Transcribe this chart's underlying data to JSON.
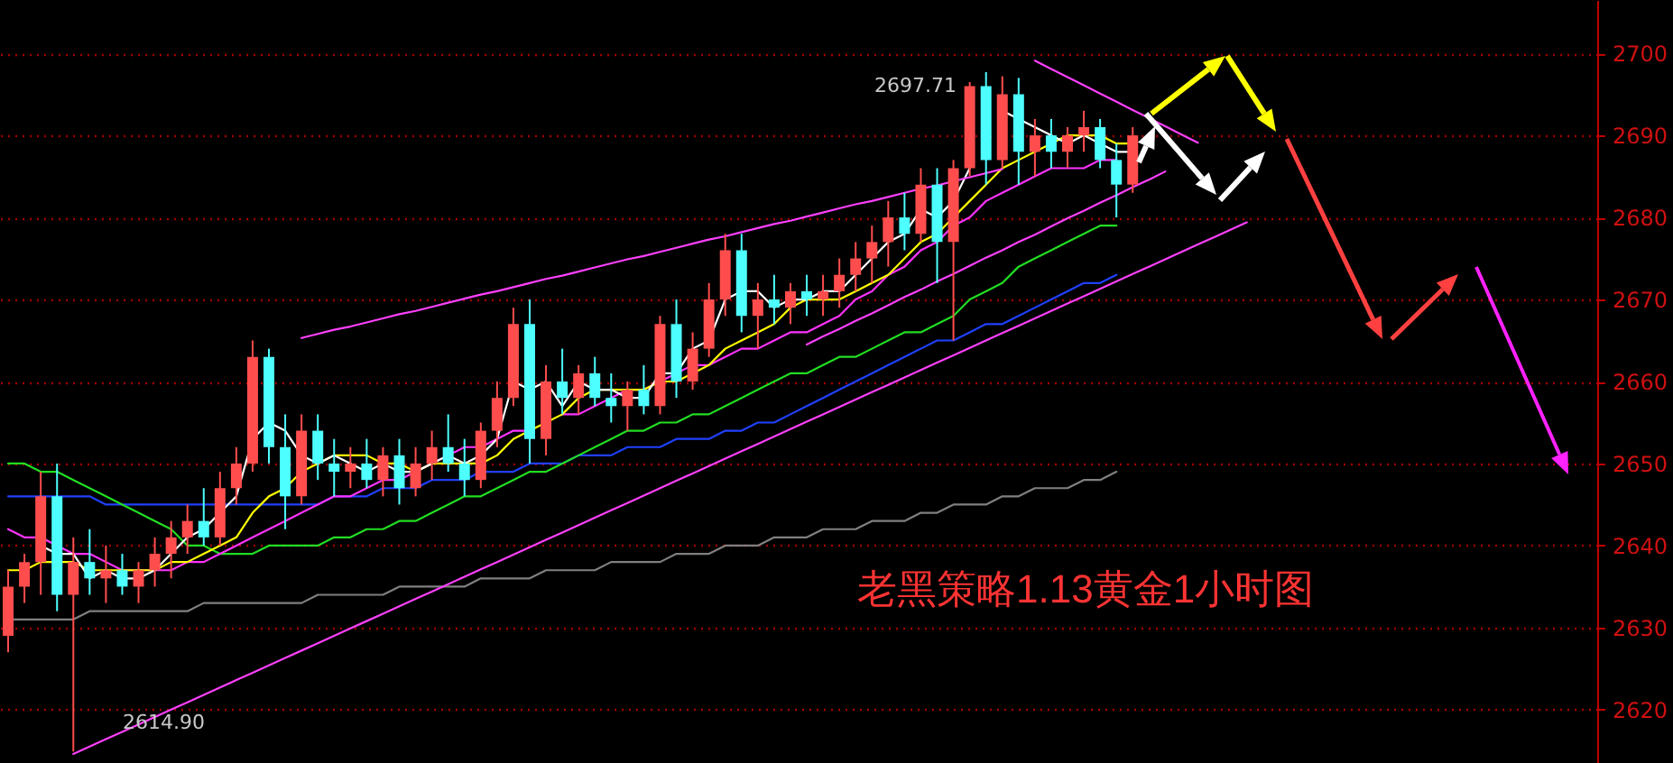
{
  "chart_data": {
    "type": "candlestick",
    "categories": [
      null,
      null,
      null,
      null,
      null,
      null,
      null,
      null,
      null,
      null,
      null,
      null,
      null,
      null,
      null,
      null,
      null,
      null,
      null,
      null,
      null,
      null,
      null,
      null,
      null,
      null,
      null,
      null,
      null,
      null,
      null,
      null,
      null,
      null,
      null,
      null,
      null,
      null,
      null,
      null,
      null,
      null,
      null,
      null,
      null,
      null,
      null,
      null,
      null,
      null,
      null,
      null,
      null,
      null,
      null,
      null,
      null,
      null,
      null,
      null,
      null,
      null,
      null,
      null,
      null,
      null,
      null,
      null,
      null,
      null,
      null,
      null,
      null,
      null,
      null,
      null,
      null,
      null,
      null,
      null,
      null,
      null,
      null,
      null,
      null,
      null,
      null,
      null,
      null,
      null,
      null,
      null,
      null,
      null,
      null,
      null,
      null,
      null
    ],
    "ohlc": [
      [
        2629,
        2637,
        2627,
        2635
      ],
      [
        2635,
        2639,
        2633,
        2638
      ],
      [
        2638,
        2649,
        2634,
        2646
      ],
      [
        2646,
        2650,
        2632,
        2634
      ],
      [
        2634,
        2641,
        2614.9,
        2638
      ],
      [
        2638,
        2642,
        2634,
        2636
      ],
      [
        2636,
        2640,
        2633,
        2637
      ],
      [
        2637,
        2639,
        2634,
        2635
      ],
      [
        2635,
        2638,
        2633,
        2637
      ],
      [
        2637,
        2641,
        2635,
        2639
      ],
      [
        2639,
        2643,
        2636,
        2641
      ],
      [
        2641,
        2645,
        2639,
        2643
      ],
      [
        2643,
        2647,
        2640,
        2641
      ],
      [
        2641,
        2649,
        2640,
        2647
      ],
      [
        2647,
        2652,
        2645,
        2650
      ],
      [
        2650,
        2665,
        2649,
        2663
      ],
      [
        2663,
        2664,
        2650,
        2652
      ],
      [
        2652,
        2656,
        2642,
        2646
      ],
      [
        2646,
        2656,
        2645,
        2654
      ],
      [
        2654,
        2656,
        2648,
        2650
      ],
      [
        2650,
        2653,
        2646,
        2649
      ],
      [
        2649,
        2652,
        2647,
        2650
      ],
      [
        2650,
        2653,
        2647,
        2648
      ],
      [
        2648,
        2652,
        2646,
        2651
      ],
      [
        2651,
        2653,
        2645,
        2647
      ],
      [
        2647,
        2652,
        2646,
        2650
      ],
      [
        2650,
        2654,
        2648,
        2652
      ],
      [
        2652,
        2656,
        2649,
        2650
      ],
      [
        2650,
        2653,
        2646,
        2648
      ],
      [
        2648,
        2655,
        2647,
        2654
      ],
      [
        2654,
        2660,
        2652,
        2658
      ],
      [
        2658,
        2669,
        2657,
        2667
      ],
      [
        2667,
        2670,
        2650,
        2653
      ],
      [
        2653,
        2662,
        2651,
        2660
      ],
      [
        2660,
        2664,
        2656,
        2658
      ],
      [
        2658,
        2662,
        2656,
        2661
      ],
      [
        2661,
        2663,
        2657,
        2658
      ],
      [
        2658,
        2661,
        2655,
        2657
      ],
      [
        2657,
        2660,
        2654,
        2659
      ],
      [
        2659,
        2662,
        2656,
        2657
      ],
      [
        2657,
        2668,
        2656,
        2667
      ],
      [
        2667,
        2670,
        2658,
        2660
      ],
      [
        2660,
        2666,
        2659,
        2664
      ],
      [
        2664,
        2672,
        2663,
        2670
      ],
      [
        2670,
        2678,
        2668,
        2676
      ],
      [
        2676,
        2678,
        2666,
        2668
      ],
      [
        2668,
        2672,
        2664,
        2670
      ],
      [
        2670,
        2673,
        2667,
        2669
      ],
      [
        2669,
        2672,
        2667,
        2671
      ],
      [
        2671,
        2673,
        2668,
        2670
      ],
      [
        2670,
        2673,
        2668,
        2671
      ],
      [
        2671,
        2675,
        2669,
        2673
      ],
      [
        2673,
        2677,
        2671,
        2675
      ],
      [
        2675,
        2679,
        2672,
        2677
      ],
      [
        2677,
        2682,
        2674,
        2680
      ],
      [
        2680,
        2683,
        2676,
        2678
      ],
      [
        2678,
        2686,
        2677,
        2684
      ],
      [
        2684,
        2686,
        2672,
        2677
      ],
      [
        2677,
        2687,
        2665,
        2686
      ],
      [
        2686,
        2696.5,
        2685,
        2696
      ],
      [
        2696,
        2697.71,
        2684,
        2687
      ],
      [
        2687,
        2697.2,
        2686,
        2695
      ],
      [
        2695,
        2697,
        2684,
        2688
      ],
      [
        2688,
        2692,
        2685,
        2690
      ],
      [
        2690,
        2692,
        2686,
        2688
      ],
      [
        2688,
        2691,
        2686,
        2690
      ],
      [
        2690,
        2693,
        2688,
        2691
      ],
      [
        2691,
        2692,
        2686,
        2687
      ],
      [
        2687,
        2689,
        2680,
        2684
      ],
      [
        2684,
        2691,
        2683,
        2690
      ],
      null,
      null,
      null,
      null,
      null,
      null,
      null,
      null,
      null,
      null,
      null,
      null,
      null,
      null,
      null,
      null,
      null,
      null,
      null,
      null,
      null,
      null,
      null,
      null,
      null,
      null,
      null,
      null
    ],
    "colors": [
      "#ff4d4d",
      "#ff4d4d",
      "#ff4d4d",
      "#4dffff",
      "#ff4d4d",
      "#4dffff",
      "#ff4d4d",
      "#4dffff",
      "#ff4d4d",
      "#ff4d4d",
      "#ff4d4d",
      "#ff4d4d",
      "#4dffff",
      "#ff4d4d",
      "#ff4d4d",
      "#ff4d4d",
      "#4dffff",
      "#4dffff",
      "#ff4d4d",
      "#4dffff",
      "#4dffff",
      "#ff4d4d",
      "#4dffff",
      "#ff4d4d",
      "#4dffff",
      "#ff4d4d",
      "#ff4d4d",
      "#4dffff",
      "#4dffff",
      "#ff4d4d",
      "#ff4d4d",
      "#ff4d4d",
      "#4dffff",
      "#ff4d4d",
      "#4dffff",
      "#ff4d4d",
      "#4dffff",
      "#4dffff",
      "#ff4d4d",
      "#4dffff",
      "#ff4d4d",
      "#4dffff",
      "#ff4d4d",
      "#ff4d4d",
      "#ff4d4d",
      "#4dffff",
      "#ff4d4d",
      "#4dffff",
      "#ff4d4d",
      "#4dffff",
      "#ff4d4d",
      "#ff4d4d",
      "#ff4d4d",
      "#ff4d4d",
      "#ff4d4d",
      "#4dffff",
      "#ff4d4d",
      "#4dffff",
      "#ff4d4d",
      "#ff4d4d",
      "#4dffff",
      "#ff4d4d",
      "#4dffff",
      "#ff4d4d",
      "#4dffff",
      "#ff4d4d",
      "#ff4d4d",
      "#4dffff",
      "#4dffff",
      "#ff4d4d",
      null,
      null,
      null,
      null,
      null,
      null,
      null,
      null,
      null,
      null,
      null,
      null,
      null,
      null,
      null,
      null,
      null,
      null,
      null,
      null,
      null,
      null,
      null,
      null,
      null,
      null,
      null,
      null
    ],
    "series": [
      {
        "type": "line",
        "color": "#808080",
        "values": [
          2631,
          2631,
          2631,
          2631,
          2631,
          2632,
          2632,
          2632,
          2632,
          2632,
          2632,
          2632,
          2633,
          2633,
          2633,
          2633,
          2633,
          2633,
          2633,
          2634,
          2634,
          2634,
          2634,
          2634,
          2635,
          2635,
          2635,
          2635,
          2635,
          2636,
          2636,
          2636,
          2636,
          2637,
          2637,
          2637,
          2637,
          2638,
          2638,
          2638,
          2638,
          2639,
          2639,
          2639,
          2640,
          2640,
          2640,
          2641,
          2641,
          2641,
          2642,
          2642,
          2642,
          2643,
          2643,
          2643,
          2644,
          2644,
          2645,
          2645,
          2645,
          2646,
          2646,
          2647,
          2647,
          2647,
          2648,
          2648,
          2649,
          null,
          null,
          null,
          null,
          null,
          null,
          null,
          null,
          null,
          null,
          null,
          null,
          null,
          null,
          null,
          null,
          null,
          null,
          null,
          null,
          null,
          null,
          null,
          null,
          null,
          null,
          null,
          null,
          null
        ]
      },
      {
        "type": "line",
        "color": "#2040ff",
        "values": [
          2646,
          2646,
          2646,
          2646,
          2646,
          2646,
          2645,
          2645,
          2645,
          2645,
          2645,
          2645,
          2645,
          2645,
          2645,
          2645,
          2645,
          2645,
          2645,
          2645,
          2646,
          2646,
          2646,
          2647,
          2647,
          2647,
          2648,
          2648,
          2648,
          2649,
          2649,
          2649,
          2650,
          2650,
          2650,
          2651,
          2651,
          2651,
          2652,
          2652,
          2652,
          2653,
          2653,
          2653,
          2654,
          2654,
          2655,
          2655,
          2656,
          2657,
          2658,
          2659,
          2660,
          2661,
          2662,
          2663,
          2664,
          2665,
          2665,
          2666,
          2667,
          2667,
          2668,
          2669,
          2670,
          2671,
          2672,
          2672,
          2673,
          null,
          null,
          null,
          null,
          null,
          null,
          null,
          null,
          null,
          null,
          null,
          null,
          null,
          null,
          null,
          null,
          null,
          null,
          null,
          null,
          null,
          null,
          null,
          null,
          null,
          null,
          null,
          null,
          null
        ]
      },
      {
        "type": "line",
        "color": "#22dd22",
        "values": [
          2650,
          2650,
          2649,
          2649,
          2648,
          2647,
          2646,
          2645,
          2644,
          2643,
          2642,
          2640,
          2640,
          2639,
          2639,
          2639,
          2640,
          2640,
          2640,
          2640,
          2641,
          2641,
          2642,
          2642,
          2643,
          2643,
          2644,
          2645,
          2646,
          2646,
          2647,
          2648,
          2649,
          2649,
          2650,
          2651,
          2652,
          2653,
          2654,
          2654,
          2655,
          2655,
          2656,
          2656,
          2657,
          2658,
          2659,
          2660,
          2661,
          2661,
          2662,
          2663,
          2663,
          2664,
          2665,
          2666,
          2666,
          2667,
          2668,
          2670,
          2671,
          2672,
          2674,
          2675,
          2676,
          2677,
          2678,
          2679,
          2679,
          null,
          null,
          null,
          null,
          null,
          null,
          null,
          null,
          null,
          null,
          null,
          null,
          null,
          null,
          null,
          null,
          null,
          null,
          null,
          null,
          null,
          null,
          null,
          null,
          null,
          null,
          null,
          null,
          null
        ]
      },
      {
        "type": "line",
        "color": "#ff33ff",
        "values": [
          2642,
          2641,
          2641,
          2640,
          2639,
          2639,
          2638,
          2637,
          2637,
          2637,
          2637,
          2638,
          2638,
          2639,
          2640,
          2641,
          2642,
          2643,
          2644,
          2645,
          2646,
          2646,
          2647,
          2648,
          2648,
          2649,
          2650,
          2651,
          2652,
          2652,
          2653,
          2654,
          2654,
          null,
          2656,
          2656,
          2657,
          2658,
          2659,
          2659,
          2660,
          2661,
          2662,
          2662,
          2663,
          2664,
          2664,
          2665,
          2666,
          2666,
          2667,
          2668,
          2670,
          2671,
          2673,
          2674,
          2676,
          2677,
          2679,
          2680,
          2682,
          2683,
          2684,
          2685,
          2686,
          2686,
          2686,
          2687,
          2687,
          null,
          null,
          null,
          null,
          null,
          null,
          null,
          null,
          null,
          null,
          null,
          null,
          null,
          null,
          null,
          null,
          null,
          null,
          null,
          null,
          null,
          null,
          null,
          null,
          null,
          null,
          null,
          null,
          null
        ]
      },
      {
        "type": "line",
        "color": "#ffff00",
        "values": [
          2637,
          2637,
          2638,
          2638,
          2638,
          2637,
          2637,
          2637,
          2637,
          2637,
          2638,
          2638,
          2639,
          2640,
          2641,
          2644,
          2646,
          2647,
          2649,
          2650,
          2651,
          2651,
          2651,
          2650,
          2650,
          2649,
          2650,
          2650,
          2650,
          2650,
          2651,
          2653,
          2654,
          2655,
          2656,
          2658,
          2659,
          2659,
          2659,
          2659,
          2660,
          2660,
          2661,
          2662,
          2664,
          2665,
          2666,
          2667,
          2669,
          2670,
          2670,
          2670,
          2671,
          2672,
          2673,
          2675,
          2677,
          2678,
          2680,
          2682,
          2684,
          2686,
          2687,
          2688,
          2689,
          2690,
          2690,
          2690,
          2689,
          2689,
          null,
          null,
          null,
          null,
          null,
          null,
          null,
          null,
          null,
          null,
          null,
          null,
          null,
          null,
          null,
          null,
          null,
          null,
          null,
          null,
          null,
          null,
          null,
          null,
          null,
          null,
          null,
          null
        ]
      },
      {
        "type": "line",
        "color": "#ffffff",
        "values": [
          null,
          null,
          2640,
          2639,
          2639,
          2636,
          2637,
          2636,
          2636,
          2637,
          2639,
          2641,
          2642,
          2644,
          2646,
          2653,
          2655,
          2654,
          2651,
          2650,
          2651,
          2650,
          2649,
          2650,
          2649,
          2649,
          2650,
          2651,
          2650,
          2651,
          2653,
          2660,
          2659,
          2660,
          2657,
          2660,
          2659,
          2659,
          2658,
          2658,
          2661,
          2661,
          2664,
          2665,
          2670,
          2671,
          2671,
          2669,
          2670,
          2670,
          2671,
          2671,
          2673,
          2675,
          2677,
          2678,
          2681,
          2680,
          2682,
          2686,
          null,
          2693,
          2692,
          2691,
          2690,
          2689,
          2690,
          2689,
          2688,
          2688,
          null,
          null,
          null,
          null,
          null,
          null,
          null,
          null,
          null,
          null,
          null,
          null,
          null,
          null,
          null,
          null,
          null,
          null,
          null,
          null,
          null,
          null,
          null,
          null,
          null,
          null,
          null,
          null
        ]
      },
      {
        "type": "line",
        "color": "#ff40ff",
        "values": [
          null,
          null,
          null,
          null,
          null,
          null,
          null,
          null,
          null,
          null,
          null,
          null,
          null,
          null,
          null,
          null,
          null,
          null,
          2665.3,
          2665.8,
          2666.3,
          2666.7,
          2667.2,
          2667.7,
          2668.2,
          2668.6,
          2669.1,
          2669.6,
          2670.1,
          2670.6,
          2671.0,
          2671.5,
          2672.0,
          2672.5,
          2672.9,
          2673.4,
          2673.9,
          2674.4,
          2674.9,
          2675.3,
          2675.8,
          2676.3,
          2676.8,
          2677.3,
          2677.7,
          2678.2,
          2678.7,
          2679.2,
          2679.6,
          2680.1,
          2680.6,
          2681.1,
          2681.6,
          2682.0,
          2682.5,
          2683.0,
          2683.5,
          2683.9,
          2684.4,
          2684.9,
          2685.4,
          2685.9,
          null,
          null,
          null,
          null,
          null,
          null,
          null,
          null,
          null,
          null,
          null,
          null,
          null,
          null,
          null,
          null,
          null,
          null,
          null,
          null,
          null,
          null,
          null,
          null,
          null,
          null,
          null,
          null,
          null,
          null,
          null,
          null,
          null,
          null,
          null,
          null
        ]
      },
      {
        "type": "line",
        "color": "#ff40ff",
        "values": [
          null,
          null,
          null,
          null,
          2614.6,
          2615.5,
          2616.4,
          2617.3,
          2618.2,
          2619.1,
          2620.0,
          2620.9,
          2621.8,
          2622.7,
          2623.6,
          2624.5,
          2625.4,
          2626.3,
          2627.2,
          2628.1,
          2629.0,
          2629.9,
          2630.8,
          2631.7,
          2632.6,
          2633.5,
          2634.4,
          2635.3,
          2636.2,
          2637.1,
          2638.0,
          2638.9,
          2639.8,
          2640.7,
          2641.6,
          2642.5,
          2643.4,
          2644.3,
          2645.2,
          2646.1,
          2647.0,
          2647.9,
          2648.8,
          2649.7,
          2650.6,
          2651.5,
          2652.4,
          2653.3,
          2654.2,
          2655.1,
          2656.0,
          2656.9,
          2657.8,
          2658.7,
          2659.6,
          2660.5,
          2661.4,
          2662.3,
          2663.2,
          2664.1,
          2665.0,
          2665.9,
          2666.8,
          2667.7,
          2668.6,
          2669.5,
          2670.4,
          2671.3,
          2672.2,
          2673.1,
          2674.0,
          2674.9,
          2675.8,
          2676.7,
          2677.6,
          2678.5,
          2679.4,
          null,
          null,
          null,
          null,
          null,
          null,
          null,
          null,
          null,
          null,
          null,
          null,
          null,
          null,
          null,
          null,
          null,
          null,
          null,
          null,
          null
        ]
      },
      {
        "type": "line",
        "color": "#ff40ff",
        "values": [
          null,
          null,
          null,
          null,
          null,
          null,
          null,
          null,
          null,
          null,
          null,
          null,
          null,
          null,
          null,
          null,
          null,
          null,
          null,
          null,
          null,
          null,
          null,
          null,
          null,
          null,
          null,
          null,
          null,
          null,
          null,
          null,
          null,
          null,
          null,
          null,
          null,
          null,
          null,
          null,
          null,
          null,
          null,
          null,
          null,
          null,
          null,
          null,
          null,
          2664.5,
          2665.5,
          2666.4,
          2667.4,
          2668.3,
          2669.3,
          2670.3,
          2671.2,
          2672.2,
          2673.1,
          2674.1,
          2675.1,
          2676.0,
          2677.0,
          2677.9,
          2678.9,
          2679.9,
          2680.8,
          2681.8,
          2682.7,
          2683.7,
          2684.6,
          2685.6,
          null,
          null,
          null,
          null,
          null,
          null,
          null,
          null,
          null,
          null,
          null,
          null,
          null,
          null,
          null,
          null,
          null,
          null,
          null,
          null,
          null,
          null,
          null,
          null,
          null,
          null
        ]
      },
      {
        "type": "line",
        "color": "#ff40ff",
        "values": [
          null,
          null,
          null,
          null,
          null,
          null,
          null,
          null,
          null,
          null,
          null,
          null,
          null,
          null,
          null,
          null,
          null,
          null,
          null,
          null,
          null,
          null,
          null,
          null,
          null,
          null,
          null,
          null,
          null,
          null,
          null,
          null,
          null,
          null,
          null,
          null,
          null,
          null,
          null,
          null,
          null,
          null,
          null,
          null,
          null,
          null,
          null,
          null,
          null,
          null,
          null,
          null,
          null,
          null,
          null,
          null,
          null,
          null,
          null,
          null,
          null,
          null,
          null,
          2699.1,
          2698.1,
          2697.1,
          2696.1,
          2695.1,
          2694.1,
          2693.1,
          2692.1,
          2691.1,
          2690.1,
          2689.1,
          null,
          null,
          null,
          null,
          null,
          null,
          null,
          null,
          null,
          null,
          null,
          null,
          null,
          null,
          null,
          null,
          null,
          null,
          null,
          null,
          null,
          null,
          null,
          null
        ]
      }
    ],
    "ylim": [
      2613.5,
      2706.5
    ],
    "yticks": [
      2620,
      2630,
      2640,
      2650,
      2660,
      2670,
      2680,
      2690,
      2700
    ],
    "grid": "y",
    "tick_labels": "y",
    "annotations": [
      "2697.71",
      "2614.90",
      "老黑策略1.13黄金1小时图"
    ]
  }
}
